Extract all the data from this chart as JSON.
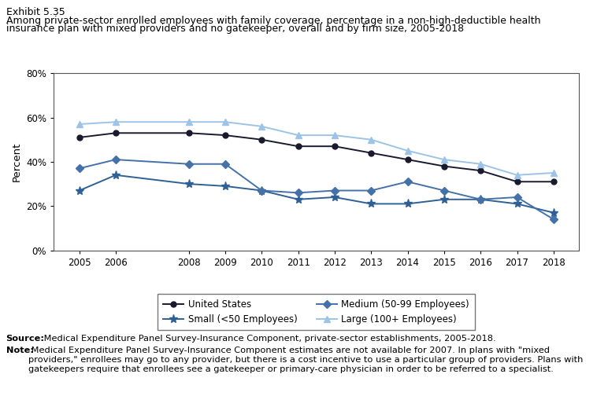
{
  "years": [
    2005,
    2006,
    2008,
    2009,
    2010,
    2011,
    2012,
    2013,
    2014,
    2015,
    2016,
    2017,
    2018
  ],
  "united_states": [
    51,
    53,
    53,
    52,
    50,
    47,
    47,
    44,
    41,
    38,
    36,
    31,
    31
  ],
  "small": [
    27,
    34,
    30,
    29,
    27,
    23,
    24,
    21,
    21,
    23,
    23,
    21,
    17
  ],
  "medium": [
    37,
    41,
    39,
    39,
    27,
    26,
    27,
    27,
    31,
    27,
    23,
    24,
    14
  ],
  "large": [
    57,
    58,
    58,
    58,
    56,
    52,
    52,
    50,
    45,
    41,
    39,
    34,
    35
  ],
  "us_color": "#1a1a2e",
  "small_color": "#2e6096",
  "medium_color": "#4472a8",
  "large_color": "#9dc3e6",
  "exhibit_label": "Exhibit 5.35",
  "title_line1": "Among private-sector enrolled employees with family coverage, percentage in a non-high-deductible health",
  "title_line2": "insurance plan with mixed providers and no gatekeeper, overall and by firm size, 2005-2018",
  "ylabel": "Percent",
  "ylim": [
    0,
    80
  ],
  "yticks": [
    0,
    20,
    40,
    60,
    80
  ],
  "source_bold": "Source:",
  "source_rest": " Medical Expenditure Panel Survey-Insurance Component, private-sector establishments, 2005-2018.",
  "note_bold": "Note:",
  "note_rest": " Medical Expenditure Panel Survey-Insurance Component estimates are not available for 2007. In plans with \"mixed providers,\" enrollees may go to any provider, but there is a cost incentive to use a particular group of providers. Plans with gatekeepers require that enrollees see a gatekeeper or primary-care physician in order to be referred to a specialist.",
  "legend_labels": [
    "United States",
    "Small (<50 Employees)",
    "Medium (50-99 Employees)",
    "Large (100+ Employees)"
  ]
}
